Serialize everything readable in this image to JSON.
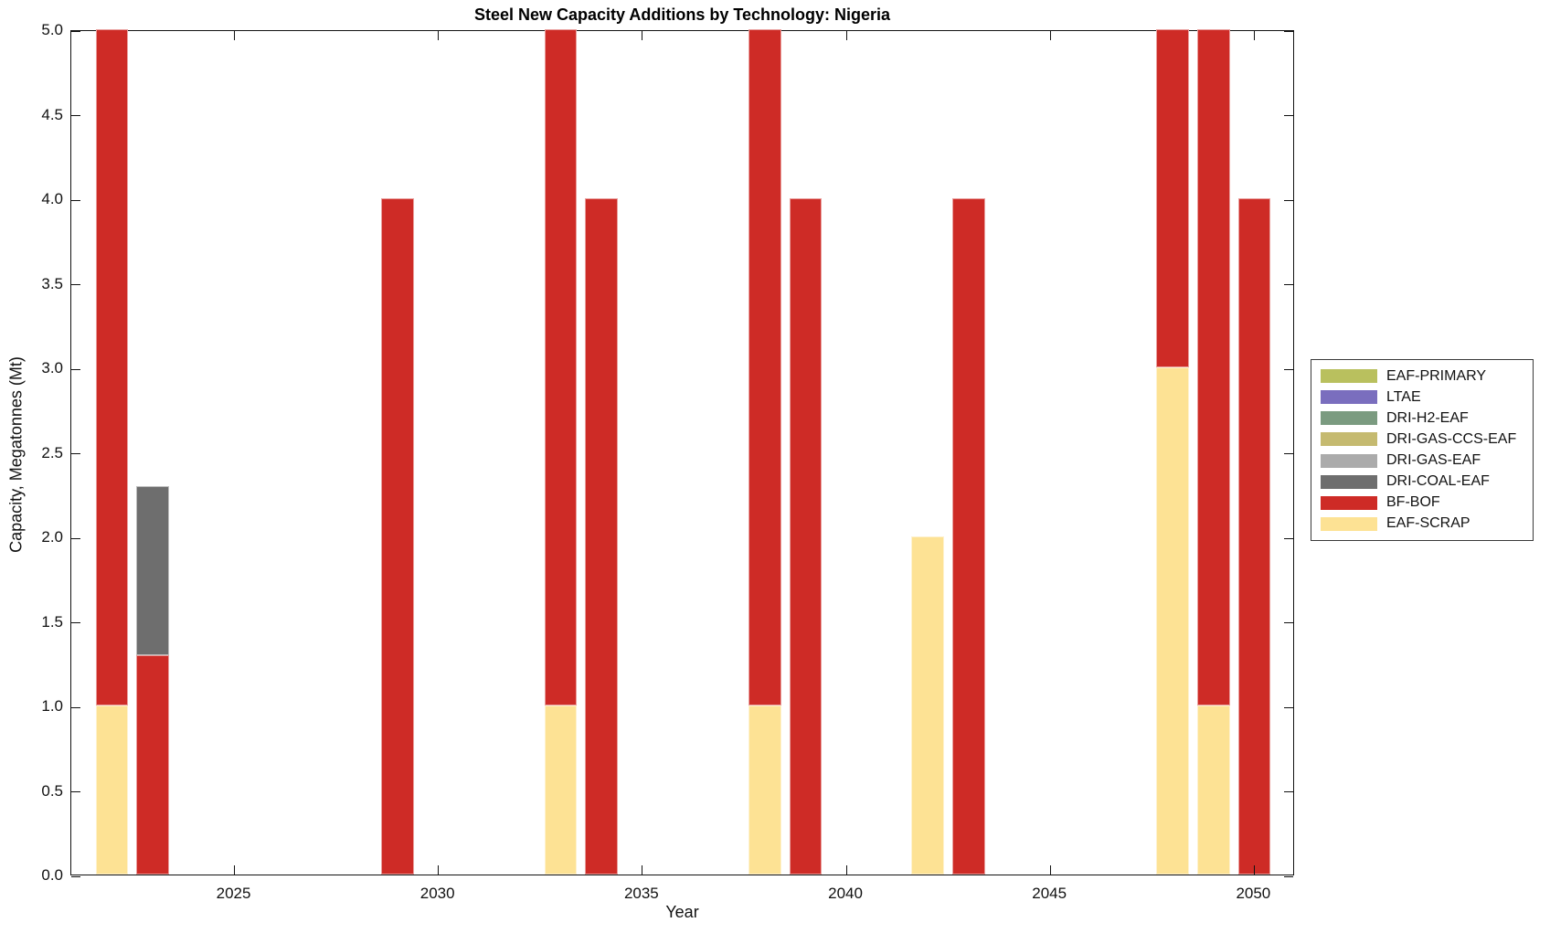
{
  "chart_data": {
    "type": "bar",
    "stacked": true,
    "title": "Steel New Capacity Additions by Technology: Nigeria",
    "xlabel": "Year",
    "ylabel": "Capacity, Megatonnes (Mt)",
    "xlim": [
      2021,
      2051
    ],
    "ylim": [
      0,
      5
    ],
    "grid": false,
    "legend_position": "outside-right",
    "bar_width_years": 0.8,
    "xticks": [
      2025,
      2030,
      2035,
      2040,
      2045,
      2050
    ],
    "ytick_labels": [
      "0.0",
      "0.5",
      "1.0",
      "1.5",
      "2.0",
      "2.5",
      "3.0",
      "3.5",
      "4.0",
      "4.5",
      "5.0"
    ],
    "ytick_values": [
      0,
      0.5,
      1.0,
      1.5,
      2.0,
      2.5,
      3.0,
      3.5,
      4.0,
      4.5,
      5.0
    ],
    "colors": {
      "EAF-PRIMARY": "#b9c05e",
      "LTAE": "#7a6ebe",
      "DRI-H2-EAF": "#7b9b80",
      "DRI-GAS-CCS-EAF": "#c5ba70",
      "DRI-GAS-EAF": "#ababab",
      "DRI-COAL-EAF": "#6e6e6e",
      "BF-BOF": "#ce2b26",
      "EAF-SCRAP": "#fde294"
    },
    "legend": [
      "EAF-PRIMARY",
      "LTAE",
      "DRI-H2-EAF",
      "DRI-GAS-CCS-EAF",
      "DRI-GAS-EAF",
      "DRI-COAL-EAF",
      "BF-BOF",
      "EAF-SCRAP"
    ],
    "bars": [
      {
        "year": 2022,
        "segments": [
          {
            "tech": "EAF-SCRAP",
            "value": 1.0
          },
          {
            "tech": "BF-BOF",
            "value": 4.0
          }
        ]
      },
      {
        "year": 2023,
        "segments": [
          {
            "tech": "BF-BOF",
            "value": 1.3
          },
          {
            "tech": "DRI-COAL-EAF",
            "value": 1.0
          }
        ]
      },
      {
        "year": 2029,
        "segments": [
          {
            "tech": "BF-BOF",
            "value": 4.0
          }
        ]
      },
      {
        "year": 2033,
        "segments": [
          {
            "tech": "EAF-SCRAP",
            "value": 1.0
          },
          {
            "tech": "BF-BOF",
            "value": 4.0
          }
        ]
      },
      {
        "year": 2034,
        "segments": [
          {
            "tech": "BF-BOF",
            "value": 4.0
          }
        ]
      },
      {
        "year": 2038,
        "segments": [
          {
            "tech": "EAF-SCRAP",
            "value": 1.0
          },
          {
            "tech": "BF-BOF",
            "value": 4.0
          }
        ]
      },
      {
        "year": 2039,
        "segments": [
          {
            "tech": "BF-BOF",
            "value": 4.0
          }
        ]
      },
      {
        "year": 2042,
        "segments": [
          {
            "tech": "EAF-SCRAP",
            "value": 2.0
          }
        ]
      },
      {
        "year": 2043,
        "segments": [
          {
            "tech": "BF-BOF",
            "value": 4.0
          }
        ]
      },
      {
        "year": 2048,
        "segments": [
          {
            "tech": "EAF-SCRAP",
            "value": 3.0
          },
          {
            "tech": "BF-BOF",
            "value": 2.0
          }
        ]
      },
      {
        "year": 2049,
        "segments": [
          {
            "tech": "EAF-SCRAP",
            "value": 1.0
          },
          {
            "tech": "BF-BOF",
            "value": 4.0
          }
        ]
      },
      {
        "year": 2050,
        "segments": [
          {
            "tech": "BF-BOF",
            "value": 4.0
          }
        ]
      }
    ]
  }
}
